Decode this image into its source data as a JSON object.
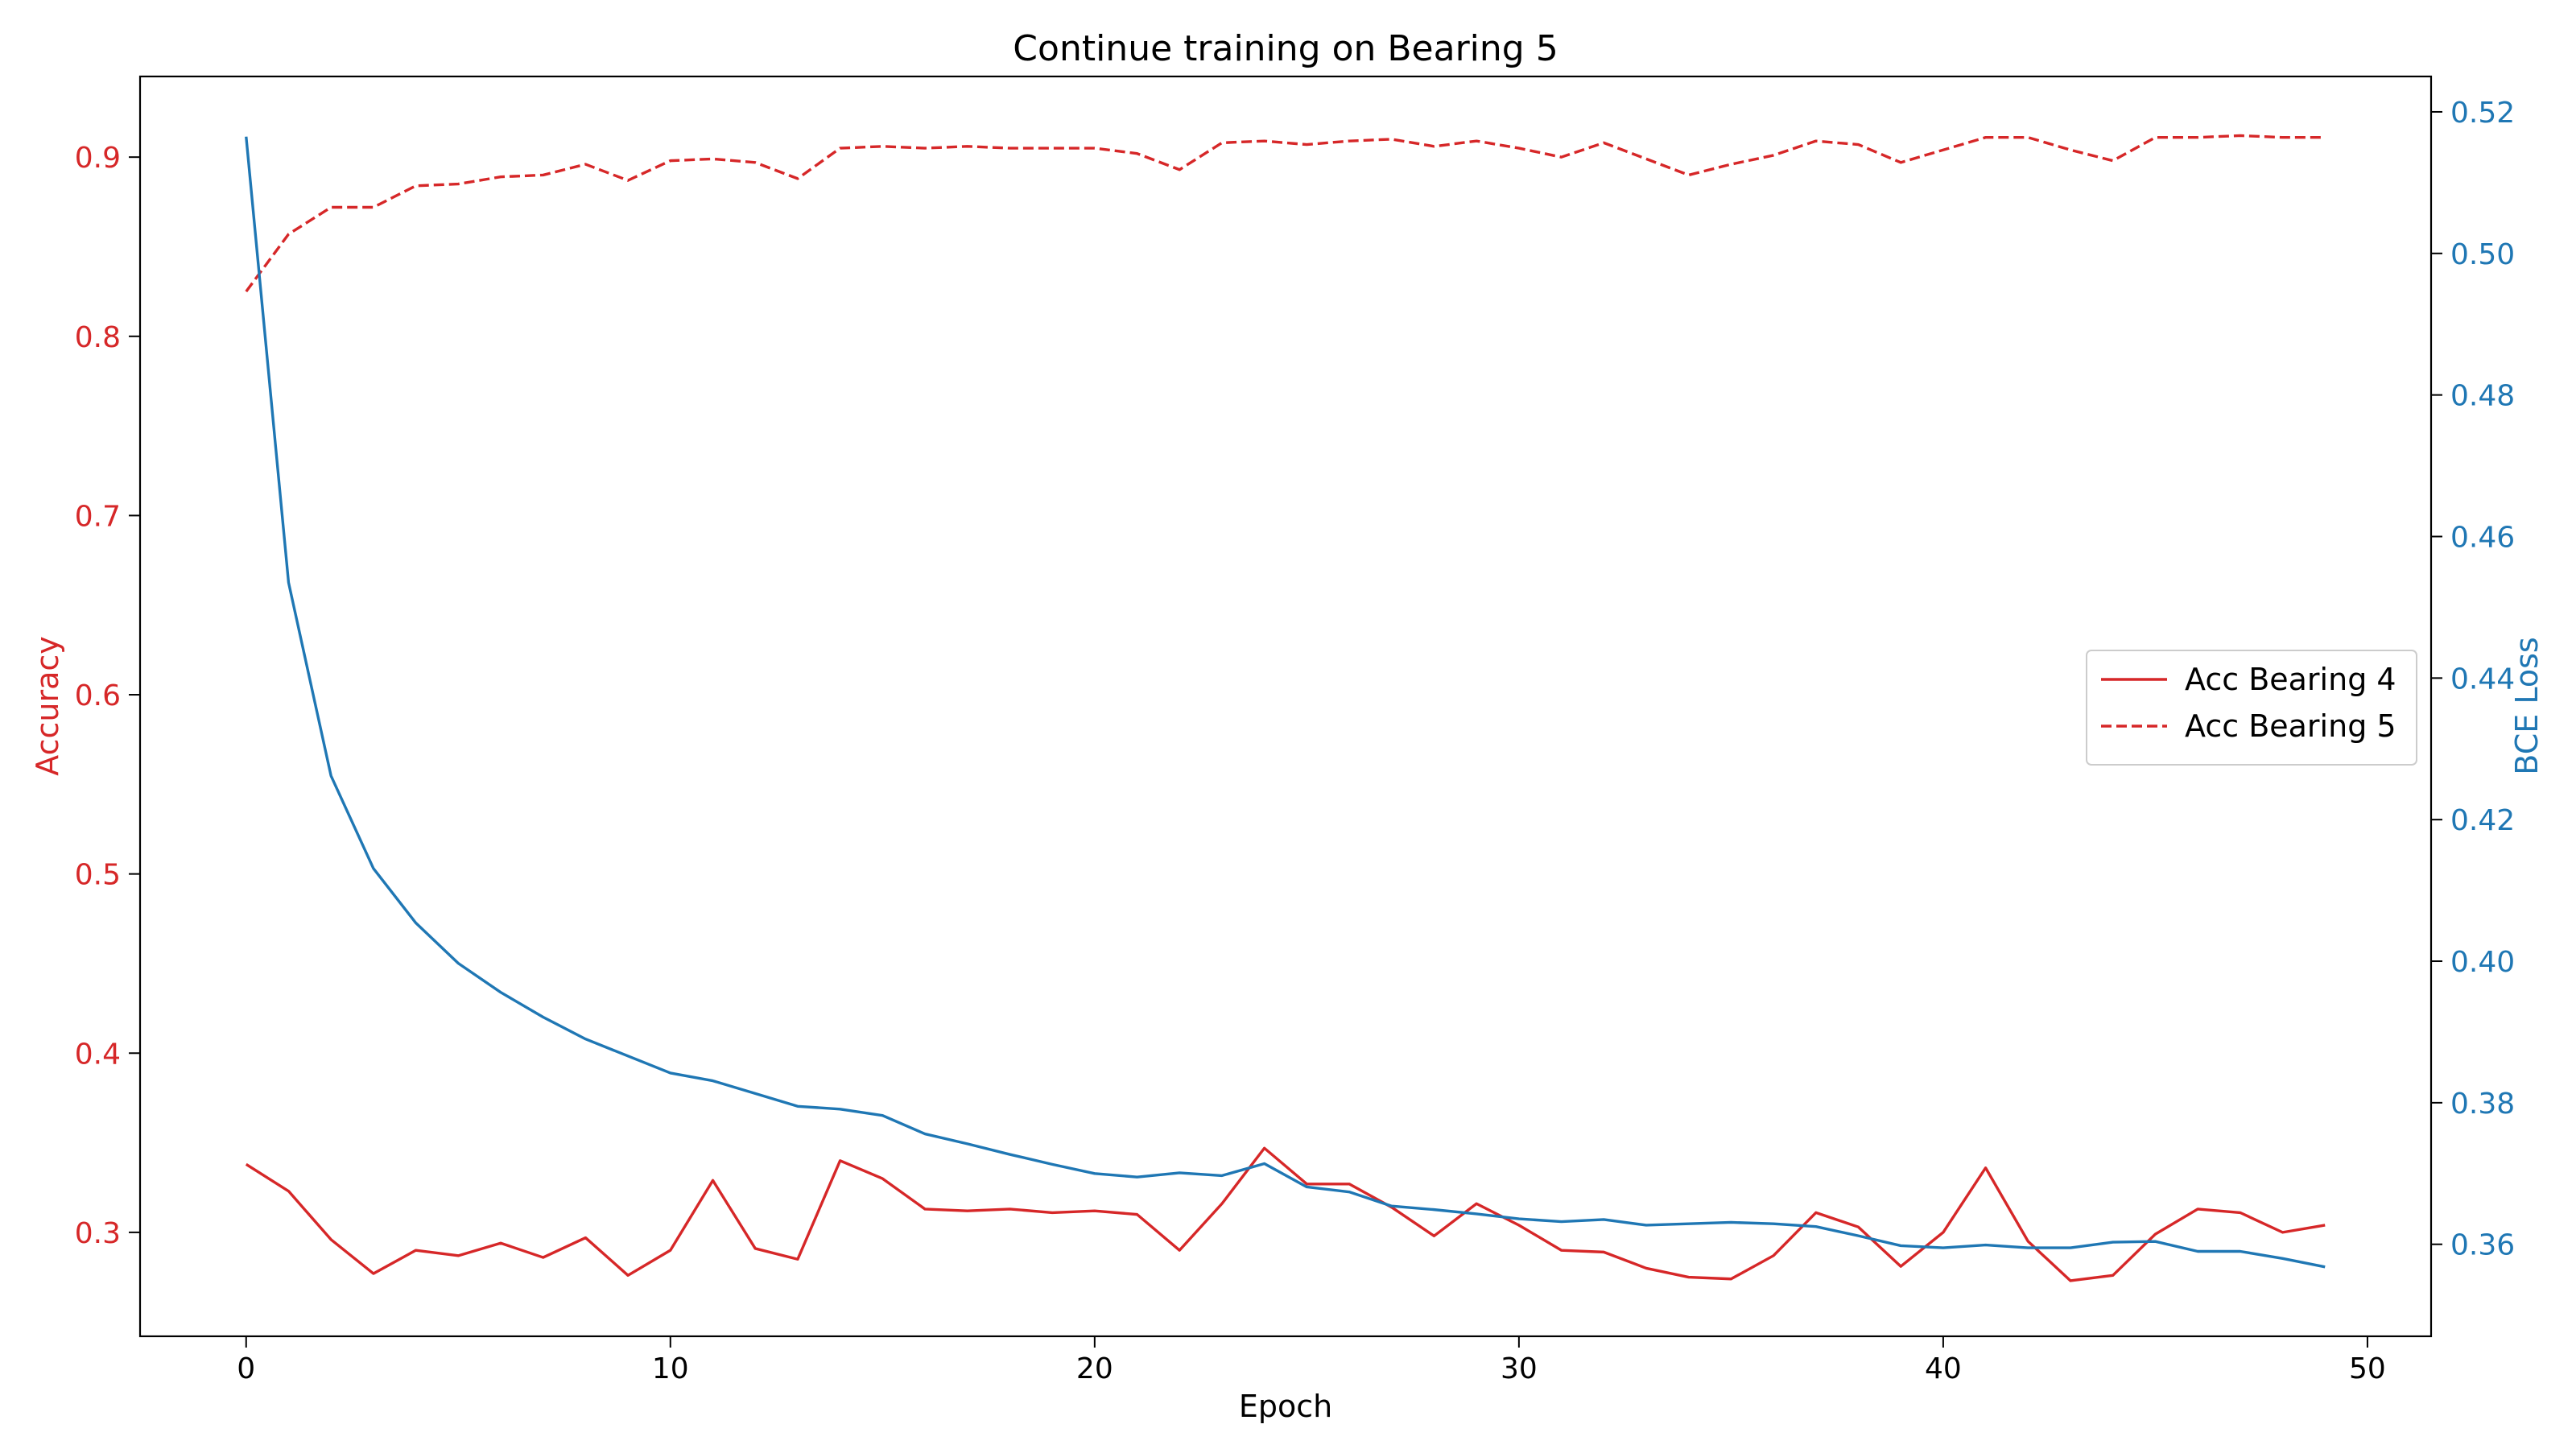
{
  "chart_data": {
    "type": "line",
    "title": "Continue training on Bearing 5",
    "xlabel": "Epoch",
    "ylabel_left": "Accuracy",
    "ylabel_right": "BCE Loss",
    "xlim": [
      -2.5,
      51.5
    ],
    "ylim_left": [
      0.242,
      0.945
    ],
    "ylim_right": [
      0.347,
      0.525
    ],
    "xticks": [
      0,
      10,
      20,
      30,
      40,
      50
    ],
    "yticks_left": [
      0.3,
      0.4,
      0.5,
      0.6,
      0.7,
      0.8,
      0.9
    ],
    "yticks_right": [
      0.36,
      0.38,
      0.4,
      0.42,
      0.44,
      0.46,
      0.48,
      0.5,
      0.52
    ],
    "grid": false,
    "legend_position": "center-right",
    "colors": {
      "accuracy": "#d62728",
      "loss": "#1f77b4"
    },
    "x": [
      0,
      1,
      2,
      3,
      4,
      5,
      6,
      7,
      8,
      9,
      10,
      11,
      12,
      13,
      14,
      15,
      16,
      17,
      18,
      19,
      20,
      21,
      22,
      23,
      24,
      25,
      26,
      27,
      28,
      29,
      30,
      31,
      32,
      33,
      34,
      35,
      36,
      37,
      38,
      39,
      40,
      41,
      42,
      43,
      44,
      45,
      46,
      47,
      48,
      49
    ],
    "series": [
      {
        "name": "Acc Bearing 4",
        "axis": "left",
        "style": "solid",
        "color": "#d62728",
        "values": [
          0.338,
          0.323,
          0.296,
          0.277,
          0.29,
          0.287,
          0.294,
          0.286,
          0.297,
          0.276,
          0.29,
          0.329,
          0.291,
          0.285,
          0.34,
          0.33,
          0.313,
          0.312,
          0.313,
          0.311,
          0.312,
          0.31,
          0.29,
          0.316,
          0.347,
          0.327,
          0.327,
          0.314,
          0.298,
          0.316,
          0.304,
          0.29,
          0.289,
          0.28,
          0.275,
          0.274,
          0.287,
          0.311,
          0.303,
          0.281,
          0.3,
          0.336,
          0.295,
          0.273,
          0.276,
          0.299,
          0.313,
          0.311,
          0.3,
          0.304
        ]
      },
      {
        "name": "Acc Bearing 5",
        "axis": "left",
        "style": "dashed",
        "color": "#d62728",
        "values": [
          0.825,
          0.857,
          0.872,
          0.872,
          0.884,
          0.885,
          0.889,
          0.89,
          0.896,
          0.887,
          0.898,
          0.899,
          0.897,
          0.888,
          0.905,
          0.906,
          0.905,
          0.906,
          0.905,
          0.905,
          0.905,
          0.902,
          0.893,
          0.908,
          0.909,
          0.907,
          0.909,
          0.91,
          0.906,
          0.909,
          0.905,
          0.9,
          0.908,
          0.899,
          0.89,
          0.896,
          0.901,
          0.909,
          0.907,
          0.897,
          0.904,
          0.911,
          0.911,
          0.904,
          0.898,
          0.911,
          0.911,
          0.912,
          0.911,
          0.911
        ]
      },
      {
        "name": "BCE Loss",
        "axis": "right",
        "style": "solid",
        "color": "#1f77b4",
        "values": [
          0.5165,
          0.4535,
          0.4262,
          0.4131,
          0.4054,
          0.3997,
          0.3956,
          0.3921,
          0.389,
          0.3866,
          0.3842,
          0.3831,
          0.3813,
          0.3795,
          0.3791,
          0.3782,
          0.3756,
          0.3742,
          0.3727,
          0.3713,
          0.37,
          0.3695,
          0.3701,
          0.3697,
          0.3714,
          0.3681,
          0.3674,
          0.3654,
          0.3649,
          0.3643,
          0.3636,
          0.3632,
          0.3635,
          0.3627,
          0.3629,
          0.3631,
          0.3629,
          0.3625,
          0.3612,
          0.3598,
          0.3595,
          0.3599,
          0.3595,
          0.3595,
          0.3603,
          0.3604,
          0.359,
          0.359,
          0.358,
          0.3568
        ]
      }
    ]
  }
}
